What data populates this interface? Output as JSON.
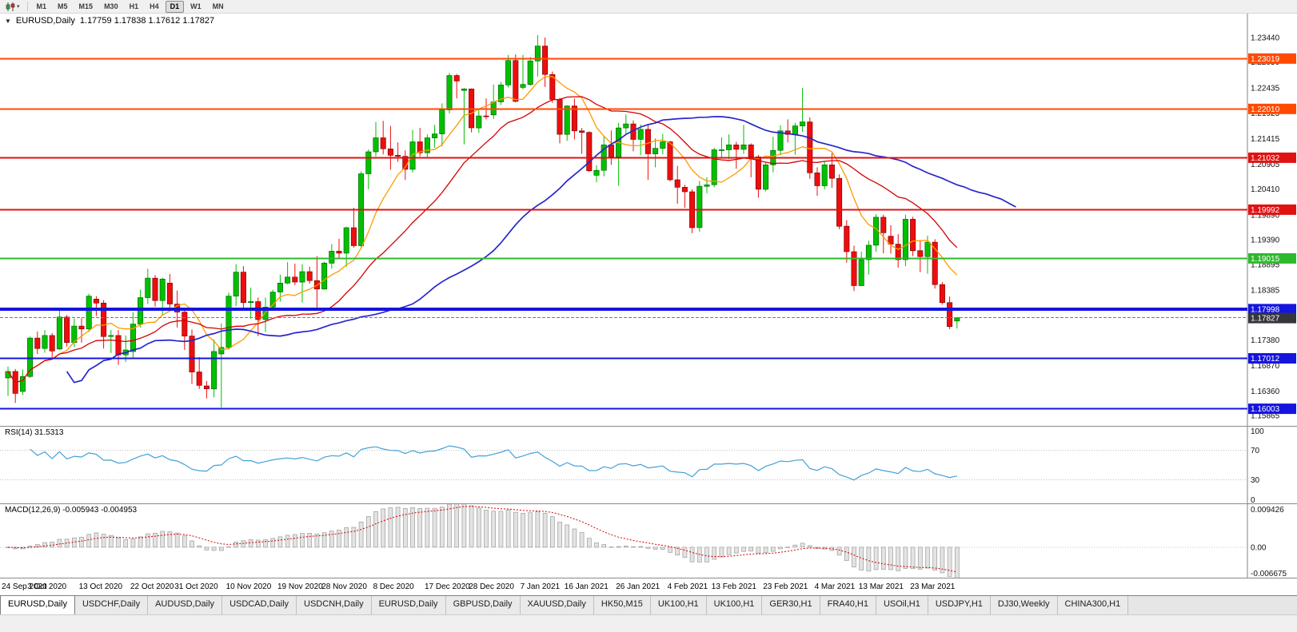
{
  "toolbar": {
    "timeframes": [
      "M1",
      "M5",
      "M15",
      "M30",
      "H1",
      "H4",
      "D1",
      "W1",
      "MN"
    ],
    "active_timeframe": "D1"
  },
  "chart": {
    "title": "EURUSD,Daily",
    "ohlc_text": "1.17759 1.17838 1.17612 1.17827"
  },
  "chart_data": {
    "type": "candlestick",
    "symbol": "EURUSD",
    "timeframe": "Daily",
    "current": {
      "open": 1.17759,
      "high": 1.17838,
      "low": 1.17612,
      "close": 1.17827
    },
    "colors": {
      "up": "#00c000",
      "up_border": "#005800",
      "down": "#ee0d0d",
      "down_border": "#6e0000"
    },
    "price_axis": {
      "min": 1.1566,
      "max": 1.2392,
      "ticks": [
        1.2344,
        1.2295,
        1.22435,
        1.21925,
        1.21415,
        1.20905,
        1.2041,
        1.1989,
        1.1939,
        1.18895,
        1.18385,
        1.1738,
        1.1687,
        1.1636,
        1.15865
      ]
    },
    "hlines": [
      {
        "value": 1.23019,
        "color": "#ff4a00",
        "width": 2
      },
      {
        "value": 1.2201,
        "color": "#ff4a00",
        "width": 2
      },
      {
        "value": 1.21032,
        "color": "#e01212",
        "width": 2
      },
      {
        "value": 1.19992,
        "color": "#e01212",
        "width": 2
      },
      {
        "value": 1.19015,
        "color": "#2db92d",
        "width": 2
      },
      {
        "value": 1.17998,
        "color": "#1515dd",
        "width": 4
      },
      {
        "value": 1.17012,
        "color": "#1515dd",
        "width": 2
      },
      {
        "value": 1.16003,
        "color": "#1515dd",
        "width": 2
      }
    ],
    "current_price_line": {
      "value": 1.17827,
      "color": "#7a7a7a",
      "label_bg": "#35353c"
    },
    "moving_averages": [
      {
        "name": "MA-fast-orange",
        "period": 8,
        "shift": 0,
        "color": "#ff9900",
        "width": 1.3
      },
      {
        "name": "MA-mid-red",
        "period": 20,
        "shift": 0,
        "color": "#d40000",
        "width": 1.3
      },
      {
        "name": "MA-slow-blue",
        "period": 34,
        "shift": 8,
        "color": "#2626cc",
        "width": 1.7
      }
    ],
    "candles": [
      [
        1.1662,
        1.1685,
        1.1626,
        1.1675
      ],
      [
        1.1675,
        1.168,
        1.1612,
        1.1631
      ],
      [
        1.1635,
        1.1679,
        1.1628,
        1.1665
      ],
      [
        1.1665,
        1.1745,
        1.1662,
        1.1742
      ],
      [
        1.1742,
        1.1755,
        1.171,
        1.1721
      ],
      [
        1.1721,
        1.1758,
        1.1713,
        1.1747
      ],
      [
        1.1747,
        1.1752,
        1.1701,
        1.1716
      ],
      [
        1.172,
        1.1797,
        1.1718,
        1.1784
      ],
      [
        1.1784,
        1.1788,
        1.1725,
        1.1733
      ],
      [
        1.1733,
        1.1781,
        1.1724,
        1.1766
      ],
      [
        1.1766,
        1.1782,
        1.1733,
        1.176
      ],
      [
        1.176,
        1.1831,
        1.1754,
        1.1826
      ],
      [
        1.182,
        1.1826,
        1.1786,
        1.1812
      ],
      [
        1.1812,
        1.1818,
        1.1721,
        1.1745
      ],
      [
        1.1745,
        1.1758,
        1.1712,
        1.1747
      ],
      [
        1.1747,
        1.1758,
        1.1688,
        1.1708
      ],
      [
        1.1708,
        1.1747,
        1.1694,
        1.1718
      ],
      [
        1.1715,
        1.1794,
        1.1702,
        1.177
      ],
      [
        1.177,
        1.1839,
        1.1763,
        1.1823
      ],
      [
        1.1823,
        1.1881,
        1.181,
        1.1862
      ],
      [
        1.1862,
        1.1868,
        1.1805,
        1.1817
      ],
      [
        1.1817,
        1.1863,
        1.1787,
        1.186
      ],
      [
        1.1852,
        1.187,
        1.1802,
        1.181
      ],
      [
        1.181,
        1.1837,
        1.1763,
        1.1794
      ],
      [
        1.1794,
        1.18,
        1.1718,
        1.1746
      ],
      [
        1.1746,
        1.1759,
        1.165,
        1.1674
      ],
      [
        1.1674,
        1.1704,
        1.164,
        1.1647
      ],
      [
        1.1646,
        1.1656,
        1.1621,
        1.164
      ],
      [
        1.164,
        1.1739,
        1.1623,
        1.1715
      ],
      [
        1.171,
        1.1771,
        1.1603,
        1.1723
      ],
      [
        1.1723,
        1.1833,
        1.1719,
        1.1826
      ],
      [
        1.1826,
        1.189,
        1.1806,
        1.1874
      ],
      [
        1.1874,
        1.1886,
        1.1801,
        1.1813
      ],
      [
        1.1813,
        1.1843,
        1.1781,
        1.1815
      ],
      [
        1.1815,
        1.1823,
        1.1746,
        1.1779
      ],
      [
        1.1779,
        1.1823,
        1.1754,
        1.1804
      ],
      [
        1.1804,
        1.1839,
        1.1799,
        1.1834
      ],
      [
        1.1834,
        1.1869,
        1.1815,
        1.1852
      ],
      [
        1.1852,
        1.1894,
        1.185,
        1.1864
      ],
      [
        1.1864,
        1.1891,
        1.1848,
        1.1854
      ],
      [
        1.1854,
        1.189,
        1.1813,
        1.1875
      ],
      [
        1.1875,
        1.1885,
        1.1851,
        1.1857
      ],
      [
        1.1857,
        1.1906,
        1.18,
        1.184
      ],
      [
        1.184,
        1.1895,
        1.1839,
        1.1892
      ],
      [
        1.1892,
        1.193,
        1.1881,
        1.1916
      ],
      [
        1.1916,
        1.1941,
        1.1901,
        1.1912
      ],
      [
        1.1912,
        1.1965,
        1.1885,
        1.1963
      ],
      [
        1.1963,
        1.2003,
        1.1923,
        1.1927
      ],
      [
        1.1927,
        1.2076,
        1.1924,
        1.2071
      ],
      [
        1.2071,
        1.212,
        1.204,
        1.2115
      ],
      [
        1.2115,
        1.2175,
        1.2106,
        1.2143
      ],
      [
        1.2143,
        1.2177,
        1.211,
        1.2121
      ],
      [
        1.2121,
        1.2167,
        1.2079,
        1.2108
      ],
      [
        1.2108,
        1.2134,
        1.2095,
        1.2106
      ],
      [
        1.2106,
        1.2118,
        1.2059,
        1.208
      ],
      [
        1.208,
        1.2159,
        1.2074,
        1.2135
      ],
      [
        1.2135,
        1.2163,
        1.2106,
        1.2113
      ],
      [
        1.2113,
        1.215,
        1.2102,
        1.2143
      ],
      [
        1.2143,
        1.2169,
        1.2123,
        1.2151
      ],
      [
        1.2151,
        1.2212,
        1.2126,
        1.2199
      ],
      [
        1.2199,
        1.2273,
        1.2192,
        1.2268
      ],
      [
        1.2268,
        1.2271,
        1.2222,
        1.2257
      ],
      [
        1.2238,
        1.2243,
        1.213,
        1.2241
      ],
      [
        1.2241,
        1.2242,
        1.2154,
        1.2163
      ],
      [
        1.2163,
        1.2201,
        1.2153,
        1.2187
      ],
      [
        1.2187,
        1.2222,
        1.218,
        1.2186
      ],
      [
        1.2189,
        1.225,
        1.2181,
        1.2215
      ],
      [
        1.2215,
        1.2255,
        1.2209,
        1.2249
      ],
      [
        1.2249,
        1.2309,
        1.2244,
        1.2298
      ],
      [
        1.2298,
        1.231,
        1.2214,
        1.2216
      ],
      [
        1.2244,
        1.2309,
        1.224,
        1.225
      ],
      [
        1.225,
        1.2305,
        1.2247,
        1.2297
      ],
      [
        1.2297,
        1.2349,
        1.2266,
        1.2327
      ],
      [
        1.2327,
        1.2344,
        1.2245,
        1.227
      ],
      [
        1.227,
        1.2276,
        1.2213,
        1.222
      ],
      [
        1.222,
        1.2223,
        1.2132,
        1.215
      ],
      [
        1.215,
        1.2208,
        1.2137,
        1.2207
      ],
      [
        1.2207,
        1.2222,
        1.214,
        1.2157
      ],
      [
        1.2157,
        1.2163,
        1.2111,
        1.2154
      ],
      [
        1.2154,
        1.2156,
        1.2075,
        1.2077
      ],
      [
        1.2068,
        1.2088,
        1.2054,
        1.2078
      ],
      [
        1.2078,
        1.2145,
        1.2066,
        1.2129
      ],
      [
        1.2129,
        1.2158,
        1.2089,
        1.2105
      ],
      [
        1.2105,
        1.2173,
        1.2047,
        1.2163
      ],
      [
        1.2163,
        1.219,
        1.215,
        1.2171
      ],
      [
        1.2171,
        1.2178,
        1.2116,
        1.214
      ],
      [
        1.214,
        1.217,
        1.2108,
        1.216
      ],
      [
        1.216,
        1.2169,
        1.2059,
        1.2111
      ],
      [
        1.2111,
        1.2142,
        1.2084,
        1.2122
      ],
      [
        1.2122,
        1.2151,
        1.211,
        1.2135
      ],
      [
        1.2135,
        1.2137,
        1.2056,
        1.2059
      ],
      [
        1.2059,
        1.2087,
        1.2011,
        1.2044
      ],
      [
        1.2044,
        1.2049,
        1.2003,
        1.2035
      ],
      [
        1.2035,
        1.204,
        1.1952,
        1.1963
      ],
      [
        1.1963,
        1.2057,
        1.1955,
        1.2046
      ],
      [
        1.2046,
        1.2064,
        1.2032,
        1.2049
      ],
      [
        1.2049,
        1.2123,
        1.2044,
        1.2119
      ],
      [
        1.2119,
        1.2144,
        1.2103,
        1.2119
      ],
      [
        1.2119,
        1.215,
        1.21,
        1.2129
      ],
      [
        1.2129,
        1.2135,
        1.2081,
        1.212
      ],
      [
        1.212,
        1.2169,
        1.2111,
        1.2129
      ],
      [
        1.2129,
        1.2132,
        1.2064,
        1.2105
      ],
      [
        1.2105,
        1.2109,
        1.2023,
        1.204
      ],
      [
        1.204,
        1.2093,
        1.2036,
        1.2089
      ],
      [
        1.2089,
        1.2145,
        1.2074,
        1.2118
      ],
      [
        1.2118,
        1.2168,
        1.2108,
        1.2157
      ],
      [
        1.2157,
        1.218,
        1.2134,
        1.215
      ],
      [
        1.215,
        1.2173,
        1.2109,
        1.2167
      ],
      [
        1.2167,
        1.2243,
        1.2155,
        1.2175
      ],
      [
        1.2175,
        1.2184,
        1.2061,
        1.2073
      ],
      [
        1.2073,
        1.2084,
        1.2027,
        1.2047
      ],
      [
        1.2047,
        1.2096,
        1.204,
        1.2089
      ],
      [
        1.2089,
        1.2113,
        1.2043,
        1.2062
      ],
      [
        1.2062,
        1.207,
        1.196,
        1.1966
      ],
      [
        1.1966,
        1.1978,
        1.1893,
        1.1915
      ],
      [
        1.1915,
        1.1927,
        1.1836,
        1.1847
      ],
      [
        1.1847,
        1.1915,
        1.1846,
        1.1899
      ],
      [
        1.1899,
        1.1937,
        1.1869,
        1.1928
      ],
      [
        1.1928,
        1.199,
        1.1915,
        1.1984
      ],
      [
        1.1984,
        1.1989,
        1.1912,
        1.1953
      ],
      [
        1.1946,
        1.1968,
        1.1911,
        1.193
      ],
      [
        1.193,
        1.195,
        1.1883,
        1.1899
      ],
      [
        1.1899,
        1.1989,
        1.1886,
        1.198
      ],
      [
        1.198,
        1.1985,
        1.1906,
        1.1917
      ],
      [
        1.1917,
        1.1938,
        1.1874,
        1.1905
      ],
      [
        1.1905,
        1.1947,
        1.1871,
        1.1934
      ],
      [
        1.1934,
        1.194,
        1.1841,
        1.1849
      ],
      [
        1.1849,
        1.1854,
        1.1809,
        1.1813
      ],
      [
        1.1813,
        1.1825,
        1.176,
        1.1765
      ],
      [
        1.17759,
        1.17838,
        1.17612,
        1.17827
      ]
    ],
    "date_ticks": [
      {
        "label": "24 Sep 2020",
        "bar": 0
      },
      {
        "label": "3 Oct 2020",
        "bar": 6
      },
      {
        "label": "13 Oct 2020",
        "bar": 13
      },
      {
        "label": "22 Oct 2020",
        "bar": 20
      },
      {
        "label": "31 Oct 2020",
        "bar": 26
      },
      {
        "label": "10 Nov 2020",
        "bar": 33
      },
      {
        "label": "19 Nov 2020",
        "bar": 40
      },
      {
        "label": "28 Nov 2020",
        "bar": 46
      },
      {
        "label": "8 Dec 2020",
        "bar": 53
      },
      {
        "label": "17 Dec 2020",
        "bar": 60
      },
      {
        "label": "28 Dec 2020",
        "bar": 66
      },
      {
        "label": "7 Jan 2021",
        "bar": 73
      },
      {
        "label": "16 Jan 2021",
        "bar": 79
      },
      {
        "label": "26 Jan 2021",
        "bar": 86
      },
      {
        "label": "4 Feb 2021",
        "bar": 93
      },
      {
        "label": "13 Feb 2021",
        "bar": 99
      },
      {
        "label": "23 Feb 2021",
        "bar": 106
      },
      {
        "label": "4 Mar 2021",
        "bar": 113
      },
      {
        "label": "13 Mar 2021",
        "bar": 119
      },
      {
        "label": "23 Mar 2021",
        "bar": 126
      }
    ],
    "rsi": {
      "label": "RSI(14) 31.5313",
      "period": 14,
      "value": 31.5313,
      "levels": [
        70,
        30
      ],
      "axis_labels": [
        "100",
        "70",
        "30",
        "0"
      ],
      "color": "#44a1d8",
      "range": [
        0,
        100
      ]
    },
    "macd": {
      "label": "MACD(12,26,9) -0.005943 -0.004953",
      "params": "12,26,9",
      "macd_value": -0.005943,
      "signal_value": -0.004953,
      "axis_labels": [
        "0.009426",
        "0.00",
        "-0.006675"
      ],
      "range": [
        -0.006675,
        0.009426
      ],
      "histogram_fill": "#e3e3e3",
      "histogram_border": "#9c9c9c",
      "signal_color": "#d40000"
    }
  },
  "tabs": [
    "EURUSD,Daily",
    "USDCHF,Daily",
    "AUDUSD,Daily",
    "USDCAD,Daily",
    "USDCNH,Daily",
    "EURUSD,Daily",
    "GBPUSD,Daily",
    "XAUUSD,Daily",
    "HK50,M15",
    "UK100,H1",
    "UK100,H1",
    "GER30,H1",
    "FRA40,H1",
    "USOil,H1",
    "USDJPY,H1",
    "DJ30,Weekly",
    "CHINA300,H1"
  ],
  "active_tab": 0
}
